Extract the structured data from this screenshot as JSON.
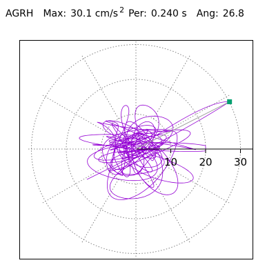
{
  "header": {
    "component": "AGRH",
    "max_label": "Max:",
    "max_value": "30.1 cm/s",
    "max_exp": "2",
    "per_label": "Per:",
    "per_value": "0.240 s",
    "ang_label": "Ang:",
    "ang_value": "26.8"
  },
  "colors": {
    "trace": "#9400d3",
    "marker": "#00a070",
    "grid": "#808080",
    "axis": "#000000",
    "max_line": "#a0a0a0"
  },
  "chart_data": {
    "type": "scatter",
    "subtype": "polar hodogram (orbital trace)",
    "radial_ticks": [
      "10",
      "20",
      "30"
    ],
    "radial_tick_values": [
      10,
      20,
      30
    ],
    "rlim": [
      0,
      31
    ],
    "grid": true,
    "grid_rings": [
      10,
      20,
      30
    ],
    "spokes_deg": [
      30,
      60,
      90,
      120,
      150,
      180,
      210,
      240,
      270,
      300,
      330
    ],
    "max": {
      "r": 30.1,
      "angle_deg": 26.8
    },
    "trace_description_values": {
      "typical_radius_range": [
        0,
        20
      ],
      "peak_radius": 30.1
    }
  }
}
